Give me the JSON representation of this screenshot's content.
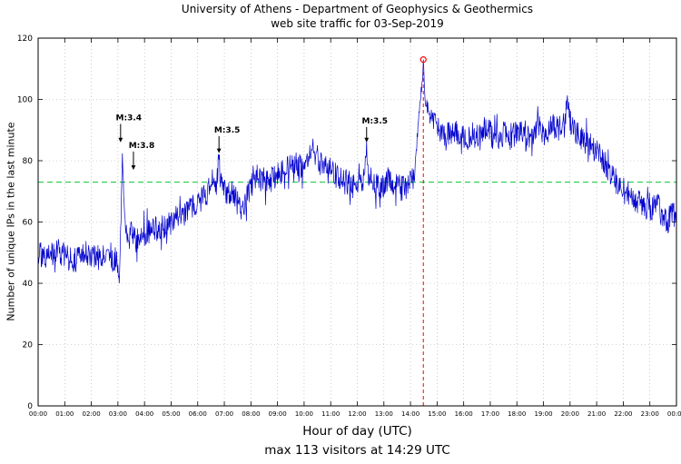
{
  "chart_data": {
    "type": "line",
    "title": "University of Athens - Department of Geophysics & Geothermics",
    "subtitle": "web site traffic for 03-Sep-2019",
    "xlabel": "Hour of day (UTC)",
    "ylabel": "Number of unique IPs in the last minute",
    "caption": "max 113 visitors at 14:29 UTC",
    "ylim": [
      0,
      120
    ],
    "yticks": [
      0,
      20,
      40,
      60,
      80,
      100,
      120
    ],
    "xtick_labels": [
      "00:00",
      "01:00",
      "02:00",
      "03:00",
      "04:00",
      "05:00",
      "06:00",
      "07:00",
      "08:00",
      "09:00",
      "10:00",
      "11:00",
      "12:00",
      "13:00",
      "14:00",
      "15:00",
      "16:00",
      "17:00",
      "18:00",
      "19:00",
      "20:00",
      "21:00",
      "22:00",
      "23:00",
      "00:00"
    ],
    "x_total_minutes": 1440,
    "grid": "dotted",
    "series_color": "#0000cd",
    "average_line": {
      "value": 73,
      "color": "#00c832",
      "style": "dashed"
    },
    "max_marker": {
      "minute": 869,
      "value": 113,
      "time_label": "14:29",
      "color": "#ff0000"
    },
    "annotations": [
      {
        "label": "M:3.4",
        "minute": 186,
        "arrow_from_value": 92,
        "arrow_to_value": 86
      },
      {
        "label": "M:3.8",
        "minute": 215,
        "arrow_from_value": 83,
        "arrow_to_value": 77
      },
      {
        "label": "M:3.5",
        "minute": 408,
        "arrow_from_value": 88,
        "arrow_to_value": 82.5
      },
      {
        "label": "M:3.5",
        "minute": 741,
        "arrow_from_value": 91,
        "arrow_to_value": 86
      }
    ],
    "series": [
      {
        "name": "unique IPs per minute",
        "color": "#0000cd",
        "noise_amplitude": 4.2,
        "noise_seed": 20190903,
        "keypoints": [
          [
            0,
            50
          ],
          [
            20,
            48
          ],
          [
            40,
            51
          ],
          [
            60,
            49
          ],
          [
            80,
            47
          ],
          [
            100,
            50
          ],
          [
            120,
            49
          ],
          [
            140,
            48
          ],
          [
            160,
            50
          ],
          [
            178,
            47
          ],
          [
            183,
            40
          ],
          [
            187,
            62
          ],
          [
            190,
            84
          ],
          [
            193,
            68
          ],
          [
            198,
            58
          ],
          [
            205,
            55
          ],
          [
            212,
            58
          ],
          [
            218,
            54
          ],
          [
            230,
            55
          ],
          [
            250,
            57
          ],
          [
            270,
            58
          ],
          [
            290,
            59
          ],
          [
            310,
            61
          ],
          [
            330,
            62
          ],
          [
            350,
            65
          ],
          [
            370,
            68
          ],
          [
            390,
            71
          ],
          [
            403,
            73
          ],
          [
            408,
            80
          ],
          [
            412,
            72
          ],
          [
            425,
            70
          ],
          [
            440,
            69
          ],
          [
            455,
            66
          ],
          [
            462,
            63
          ],
          [
            475,
            70
          ],
          [
            490,
            75
          ],
          [
            505,
            74
          ],
          [
            520,
            73
          ],
          [
            535,
            75
          ],
          [
            550,
            76
          ],
          [
            565,
            78
          ],
          [
            580,
            79
          ],
          [
            595,
            78
          ],
          [
            610,
            81
          ],
          [
            622,
            84
          ],
          [
            635,
            79
          ],
          [
            650,
            78
          ],
          [
            665,
            76
          ],
          [
            680,
            74
          ],
          [
            695,
            73
          ],
          [
            710,
            72
          ],
          [
            725,
            73
          ],
          [
            737,
            75
          ],
          [
            741,
            84
          ],
          [
            746,
            75
          ],
          [
            760,
            72
          ],
          [
            775,
            71
          ],
          [
            790,
            74
          ],
          [
            805,
            72
          ],
          [
            820,
            71
          ],
          [
            835,
            72
          ],
          [
            848,
            74
          ],
          [
            854,
            85
          ],
          [
            860,
            97
          ],
          [
            865,
            104
          ],
          [
            869,
            113
          ],
          [
            873,
            99
          ],
          [
            880,
            96
          ],
          [
            890,
            93
          ],
          [
            905,
            90
          ],
          [
            920,
            88
          ],
          [
            935,
            91
          ],
          [
            950,
            87
          ],
          [
            965,
            88
          ],
          [
            980,
            86
          ],
          [
            995,
            89
          ],
          [
            1010,
            91
          ],
          [
            1025,
            88
          ],
          [
            1040,
            87
          ],
          [
            1055,
            90
          ],
          [
            1070,
            88
          ],
          [
            1085,
            90
          ],
          [
            1100,
            87
          ],
          [
            1115,
            89
          ],
          [
            1130,
            91
          ],
          [
            1145,
            88
          ],
          [
            1160,
            92
          ],
          [
            1175,
            90
          ],
          [
            1188,
            95
          ],
          [
            1195,
            99
          ],
          [
            1202,
            91
          ],
          [
            1215,
            89
          ],
          [
            1228,
            87
          ],
          [
            1240,
            86
          ],
          [
            1252,
            84
          ],
          [
            1264,
            83
          ],
          [
            1276,
            80
          ],
          [
            1288,
            77
          ],
          [
            1300,
            74
          ],
          [
            1312,
            72
          ],
          [
            1324,
            70
          ],
          [
            1336,
            69
          ],
          [
            1348,
            67
          ],
          [
            1360,
            66
          ],
          [
            1372,
            65
          ],
          [
            1384,
            64
          ],
          [
            1396,
            66
          ],
          [
            1408,
            62
          ],
          [
            1420,
            60
          ],
          [
            1430,
            63
          ],
          [
            1440,
            61
          ]
        ]
      }
    ]
  }
}
